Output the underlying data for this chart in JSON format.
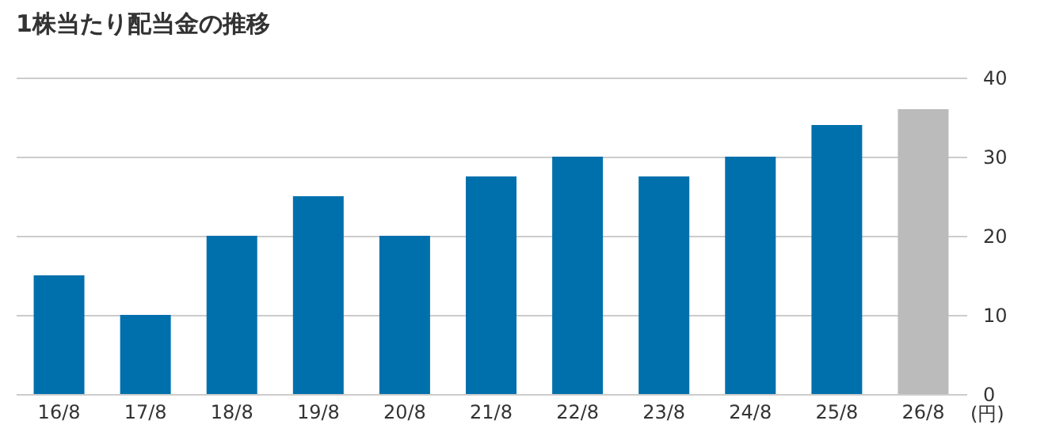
{
  "chart_data": {
    "type": "bar",
    "title": "1株当たり配当金の推移",
    "ylabel": "(円)",
    "categories": [
      "16/8",
      "17/8",
      "18/8",
      "19/8",
      "20/8",
      "21/8",
      "22/8",
      "23/8",
      "24/8",
      "25/8",
      "26/8"
    ],
    "values": [
      15,
      10,
      20,
      25,
      20,
      27.5,
      30,
      27.5,
      30,
      34,
      36
    ],
    "colors": [
      "#0070ad",
      "#0070ad",
      "#0070ad",
      "#0070ad",
      "#0070ad",
      "#0070ad",
      "#0070ad",
      "#0070ad",
      "#0070ad",
      "#0070ad",
      "#bbbbbb"
    ],
    "ylim": [
      0,
      40
    ],
    "yticks": [
      0,
      10,
      20,
      30,
      40
    ],
    "grid": "y"
  }
}
